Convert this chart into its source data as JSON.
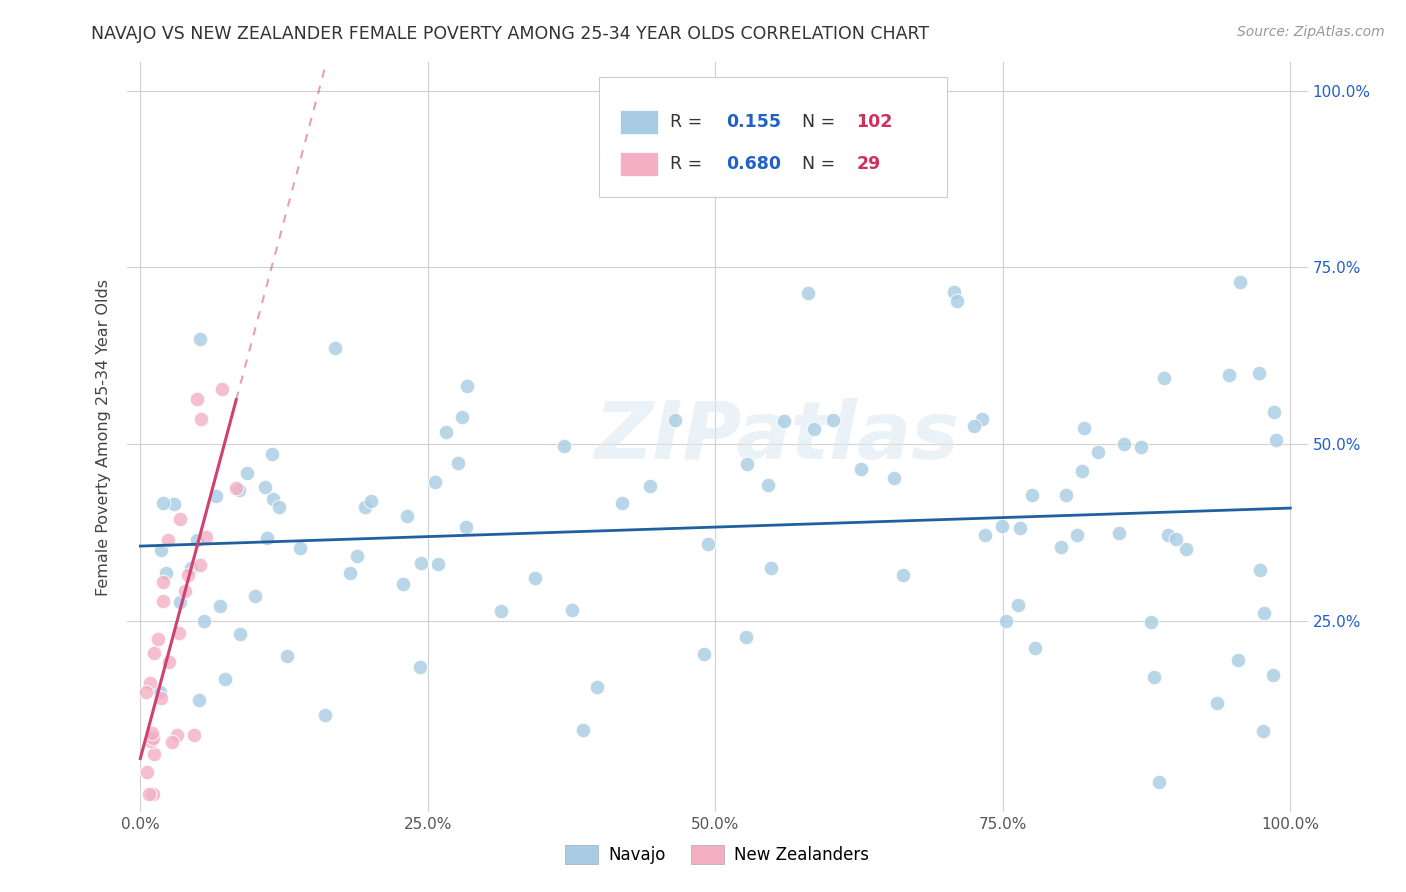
{
  "title": "NAVAJO VS NEW ZEALANDER FEMALE POVERTY AMONG 25-34 YEAR OLDS CORRELATION CHART",
  "source": "Source: ZipAtlas.com",
  "ylabel": "Female Poverty Among 25-34 Year Olds",
  "navajo_color": "#a8cce4",
  "nz_color": "#f4afc4",
  "trend_blue_color": "#2060a0",
  "trend_pink_color": "#d04070",
  "R_color": "#2060c8",
  "N_color": "#d03060",
  "grid_color": "#cccccc",
  "ytick_vals": [
    0.25,
    0.5,
    0.75,
    1.0
  ],
  "ytick_labels": [
    "25.0%",
    "50.0%",
    "75.0%",
    "100.0%"
  ],
  "xtick_vals": [
    0.0,
    0.25,
    0.5,
    0.75,
    1.0
  ],
  "xtick_labels": [
    "0.0%",
    "25.0%",
    "50.0%",
    "75.0%",
    "100.0%"
  ],
  "navajo_seed": 77,
  "nz_seed": 33,
  "navajo_N": 102,
  "nz_N": 29,
  "navajo_R": 0.155,
  "nz_R": 0.68
}
